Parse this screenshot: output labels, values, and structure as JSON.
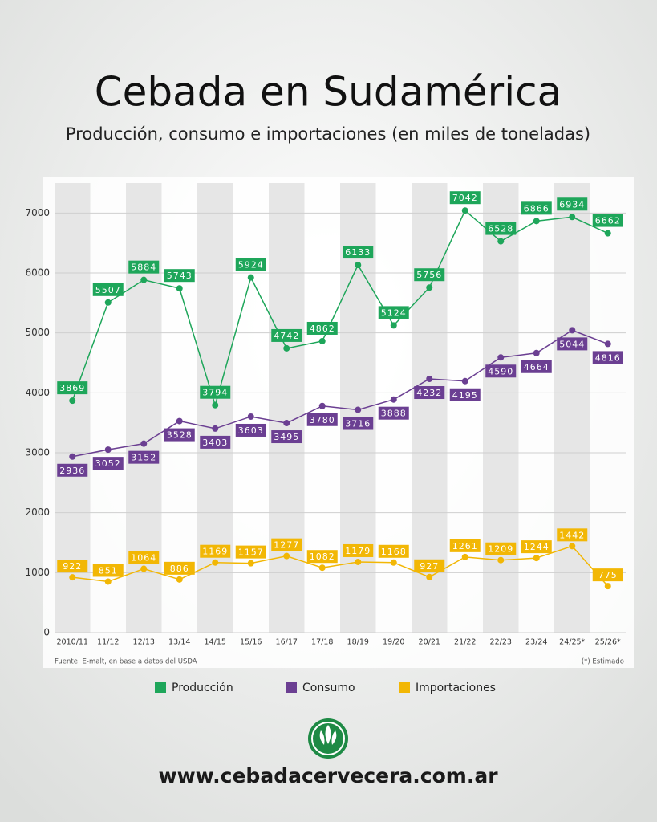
{
  "chart_data": {
    "type": "line",
    "title": "Cebada en Sudamérica",
    "subtitle": "Producción, consumo e importaciones (en miles de toneladas)",
    "categories": [
      "2010/11",
      "11/12",
      "12/13",
      "13/14",
      "14/15",
      "15/16",
      "16/17",
      "17/18",
      "18/19",
      "19/20",
      "20/21",
      "21/22",
      "22/23",
      "23/24",
      "24/25*",
      "25/26*"
    ],
    "series": [
      {
        "name": "Producción",
        "color": "#1ea65a",
        "values": [
          3869,
          5507,
          5884,
          5743,
          3794,
          5924,
          4742,
          4862,
          6133,
          5124,
          5756,
          7042,
          6528,
          6866,
          6934,
          6662
        ]
      },
      {
        "name": "Consumo",
        "color": "#6b3f92",
        "values": [
          2936,
          3052,
          3152,
          3528,
          3403,
          3603,
          3495,
          3780,
          3716,
          3888,
          4232,
          4195,
          4590,
          4664,
          5044,
          4816
        ]
      },
      {
        "name": "Importaciones",
        "color": "#f2b705",
        "values": [
          922,
          851,
          1064,
          886,
          1169,
          1157,
          1277,
          1082,
          1179,
          1168,
          927,
          1261,
          1209,
          1244,
          1442,
          775
        ]
      }
    ],
    "ylim": [
      0,
      7500
    ],
    "yticks": [
      0,
      1000,
      2000,
      3000,
      4000,
      5000,
      6000,
      7000
    ],
    "grid": true,
    "source": "Fuente: E-malt, en base a datos del USDA",
    "note": "(*) Estimado",
    "website": "www.cebadacervecera.com.ar"
  }
}
